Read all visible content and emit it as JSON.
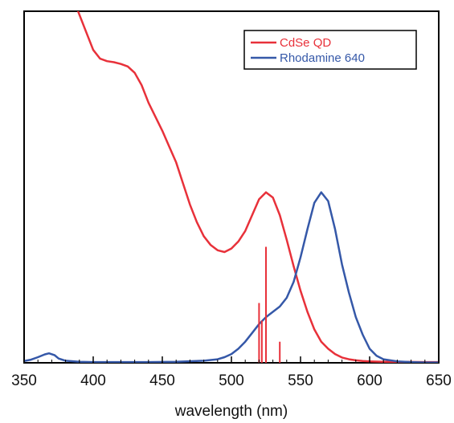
{
  "chart_data": {
    "type": "line",
    "title": "",
    "xlabel": "wavelength (nm)",
    "ylabel": "",
    "xlim": [
      350,
      650
    ],
    "ylim": [
      0,
      1
    ],
    "xticks": [
      "350",
      "400",
      "450",
      "500",
      "550",
      "600",
      "650"
    ],
    "grid": false,
    "legend_position": "top-right",
    "series": [
      {
        "name": "CdSe QD",
        "color": "#e8313a",
        "x": [
          388,
          395,
          400,
          405,
          410,
          415,
          420,
          425,
          430,
          435,
          440,
          445,
          450,
          455,
          460,
          465,
          470,
          475,
          480,
          485,
          490,
          495,
          500,
          505,
          510,
          515,
          520,
          525,
          530,
          535,
          540,
          545,
          550,
          555,
          560,
          565,
          570,
          575,
          580,
          585,
          590,
          595,
          600,
          610,
          620,
          640,
          650
        ],
        "y": [
          1.01,
          0.94,
          0.89,
          0.865,
          0.858,
          0.855,
          0.85,
          0.843,
          0.825,
          0.79,
          0.74,
          0.7,
          0.66,
          0.615,
          0.57,
          0.51,
          0.45,
          0.4,
          0.36,
          0.335,
          0.32,
          0.315,
          0.325,
          0.345,
          0.375,
          0.42,
          0.465,
          0.485,
          0.47,
          0.42,
          0.35,
          0.275,
          0.205,
          0.145,
          0.095,
          0.06,
          0.04,
          0.025,
          0.015,
          0.01,
          0.007,
          0.005,
          0.004,
          0.003,
          0.003,
          0.002,
          0.002
        ]
      },
      {
        "name": "Rhodamine 640",
        "color": "#3558a8",
        "x": [
          350,
          355,
          360,
          365,
          368,
          372,
          375,
          380,
          390,
          400,
          420,
          440,
          460,
          480,
          490,
          495,
          500,
          505,
          510,
          515,
          520,
          525,
          530,
          535,
          540,
          545,
          550,
          555,
          560,
          565,
          570,
          575,
          580,
          585,
          590,
          595,
          600,
          605,
          610,
          620,
          630,
          640,
          650
        ],
        "y": [
          0.005,
          0.009,
          0.016,
          0.024,
          0.027,
          0.022,
          0.012,
          0.006,
          0.003,
          0.002,
          0.002,
          0.002,
          0.003,
          0.006,
          0.01,
          0.016,
          0.025,
          0.04,
          0.06,
          0.085,
          0.11,
          0.13,
          0.145,
          0.16,
          0.185,
          0.23,
          0.3,
          0.38,
          0.455,
          0.485,
          0.46,
          0.38,
          0.28,
          0.2,
          0.13,
          0.08,
          0.04,
          0.02,
          0.01,
          0.004,
          0.002,
          0.001,
          0.001
        ]
      },
      {
        "name": "",
        "type": "stem",
        "color": "#e8313a",
        "x": [
          520,
          522,
          525,
          535
        ],
        "y": [
          0.17,
          0.12,
          0.33,
          0.06
        ]
      }
    ]
  }
}
